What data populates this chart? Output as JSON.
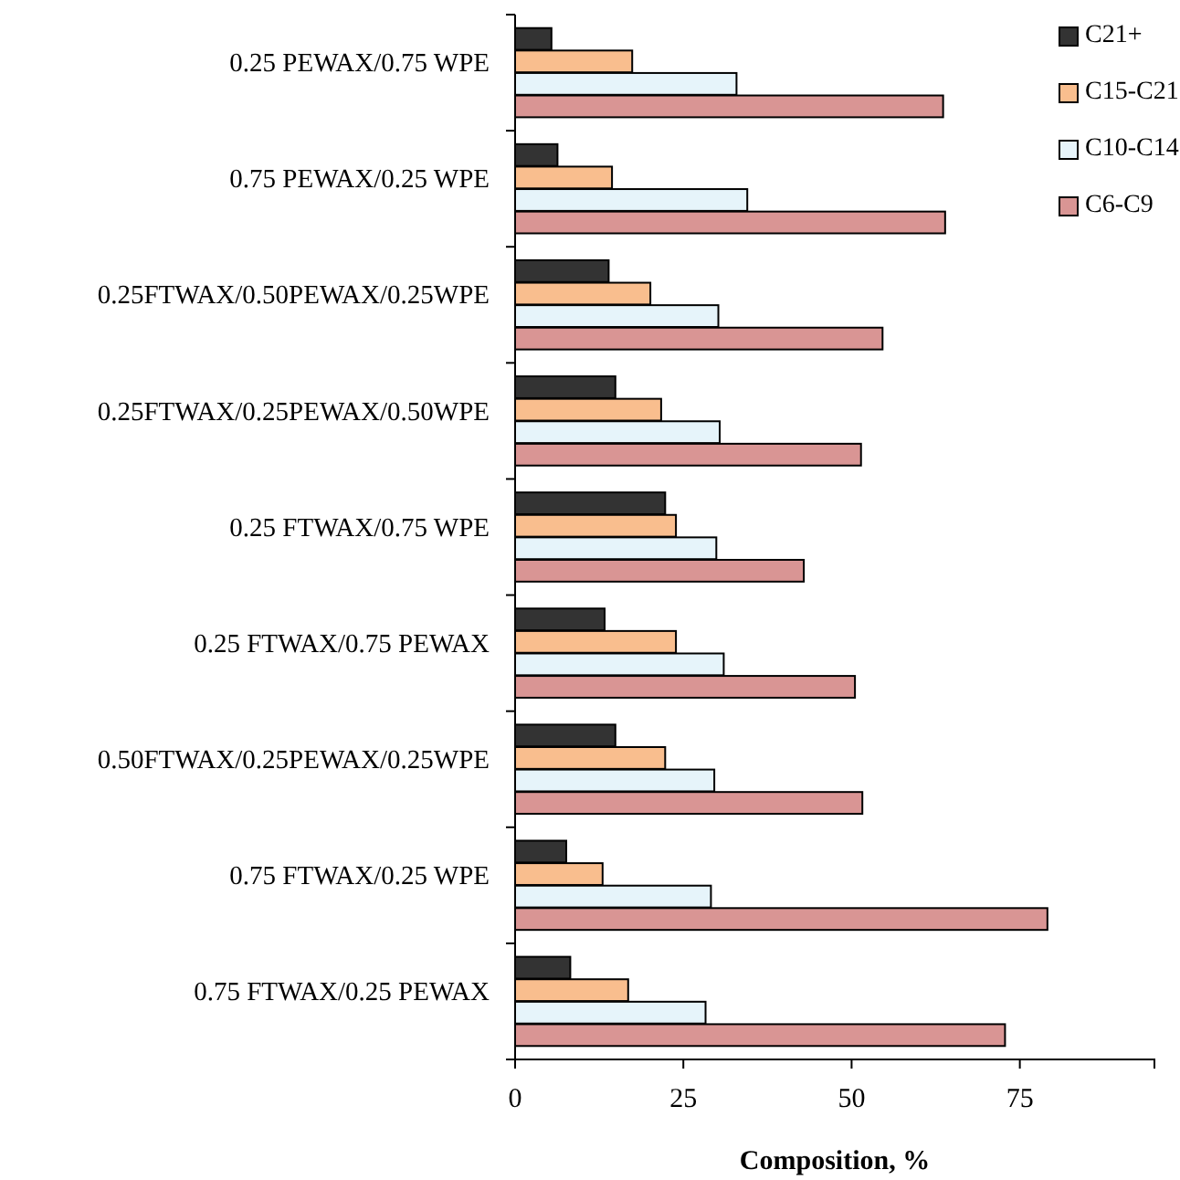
{
  "chart_data": {
    "type": "bar",
    "orientation": "horizontal",
    "xlabel": "Composition, %",
    "categories": [
      "0.25 PEWAX/0.75 WPE",
      "0.75 PEWAX/0.25 WPE",
      "0.25FTWAX/0.50PEWAX/0.25WPE",
      "0.25FTWAX/0.25PEWAX/0.50WPE",
      "0.25 FTWAX/0.75 WPE",
      "0.25 FTWAX/0.75 PEWAX",
      "0.50FTWAX/0.25PEWAX/0.25WPE",
      "0.75 FTWAX/0.25 WPE",
      "0.75 FTWAX/0.25 PEWAX"
    ],
    "series": [
      {
        "name": "C21+",
        "color": "#333333",
        "values": [
          5.4,
          6.3,
          13.9,
          14.9,
          22.3,
          13.3,
          14.9,
          7.6,
          8.2
        ]
      },
      {
        "name": "C15-C21",
        "color": "#f9be8e",
        "values": [
          17.4,
          14.4,
          20.1,
          21.7,
          23.9,
          23.9,
          22.3,
          13.0,
          16.8
        ]
      },
      {
        "name": "C10-C14",
        "color": "#e6f4fa",
        "values": [
          32.9,
          34.5,
          30.2,
          30.4,
          29.9,
          31.0,
          29.6,
          29.1,
          28.3
        ]
      },
      {
        "name": "C6-C9",
        "color": "#d99594",
        "values": [
          63.6,
          63.9,
          54.6,
          51.4,
          42.9,
          50.5,
          51.6,
          79.1,
          72.8
        ]
      }
    ],
    "xlim": [
      0,
      95
    ],
    "xticks": [
      0,
      25,
      50,
      75
    ],
    "grid": false,
    "legend": "top right"
  }
}
